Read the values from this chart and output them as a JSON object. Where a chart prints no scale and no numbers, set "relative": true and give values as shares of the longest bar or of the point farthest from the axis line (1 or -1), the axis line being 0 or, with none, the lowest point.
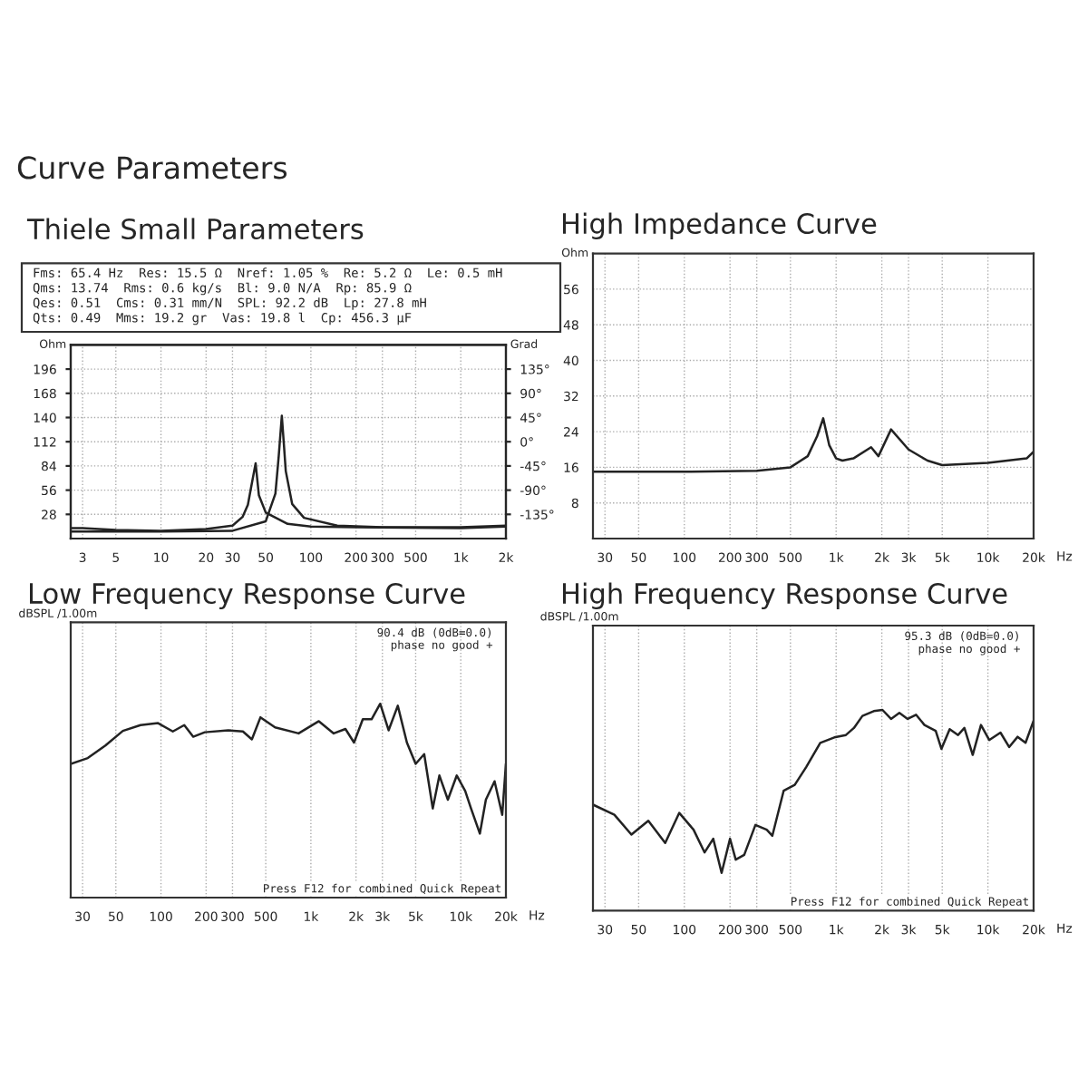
{
  "chart_data": [
    {
      "type": "line",
      "title": "Thiele Small Parameters",
      "annotations": [
        "Curve Parameters",
        "Fms: 65.4 Hz  Res: 15.5 Ω  Nref: 1.05 %  Re: 5.2 Ω  Le: 0.5 mH",
        "Qms: 13.74  Rms: 0.6 kg/s  Bl: 9.0 N/A  Rp: 85.9 Ω",
        "Qes: 0.51  Cms: 0.31 mm/N  SPL: 92.2 dB  Lp: 27.8 mH",
        "Qts: 0.49  Mms: 19.2 gr  Vas: 19.8 l  Cp: 456.3 µF"
      ],
      "ylabel": "Ohm",
      "y2label": "Grad",
      "log": "x",
      "grid": true,
      "legend": false,
      "xlim": [
        2.5,
        2000
      ],
      "xticks": [
        3,
        5,
        10,
        20,
        30,
        50,
        100,
        200,
        300,
        500,
        {
          "value": 1000,
          "label": "1k"
        },
        {
          "value": 2000,
          "label": "2k"
        }
      ],
      "ylim": [
        0,
        224
      ],
      "yticks": [
        28,
        56,
        84,
        112,
        140,
        168,
        196
      ],
      "y2lim": [
        -180,
        180
      ],
      "y2ticks": [
        {
          "value": -135,
          "label": "-135°"
        },
        {
          "value": -90,
          "label": "-90°"
        },
        {
          "value": -45,
          "label": "-45°"
        },
        {
          "value": 0,
          "label": "0°"
        },
        {
          "value": 45,
          "label": "45°"
        },
        {
          "value": 90,
          "label": "90°"
        },
        {
          "value": 135,
          "label": "135°"
        }
      ],
      "series": [
        {
          "color": "#222222",
          "x": [
            2.5,
            3,
            5,
            10,
            20,
            30,
            35,
            38,
            40,
            42.8,
            45,
            50,
            70,
            100,
            200,
            1000,
            2000
          ],
          "values": [
            12,
            12,
            10,
            9,
            11,
            15,
            25,
            39,
            60,
            87,
            50,
            30,
            17,
            14,
            13,
            12,
            14
          ]
        },
        {
          "color": "#222222",
          "x": [
            2.5,
            3,
            10,
            30,
            50,
            58,
            61,
            64,
            66,
            68,
            75,
            90,
            150,
            300,
            1000,
            2000
          ],
          "values": [
            8,
            8,
            8,
            9,
            20,
            52,
            95,
            142,
            110,
            78,
            40,
            24,
            15,
            13,
            13,
            15
          ]
        }
      ]
    },
    {
      "type": "line",
      "title": "High Impedance Curve",
      "ylabel": "Ohm",
      "xlabel": "Hz",
      "log": "x",
      "grid": true,
      "legend": false,
      "xlim": [
        25,
        20000
      ],
      "xticks": [
        30,
        50,
        100,
        200,
        300,
        500,
        {
          "value": 1000,
          "label": "1k"
        },
        {
          "value": 2000,
          "label": "2k"
        },
        {
          "value": 3000,
          "label": "3k"
        },
        {
          "value": 5000,
          "label": "5k"
        },
        {
          "value": 10000,
          "label": "10k"
        },
        {
          "value": 20000,
          "label": "20k"
        }
      ],
      "ylim": [
        0,
        64
      ],
      "yticks": [
        8,
        16,
        24,
        32,
        40,
        48,
        56
      ],
      "series": [
        {
          "color": "#222222",
          "x": [
            25,
            100,
            300,
            500,
            650,
            750,
            822,
            900,
            1000,
            1100,
            1300,
            1700,
            1900,
            2300,
            3000,
            4000,
            5000,
            10000,
            18000,
            20000
          ],
          "values": [
            15,
            15,
            15.2,
            16,
            18.5,
            23,
            27,
            21,
            18,
            17.5,
            18,
            20.5,
            18.5,
            24.5,
            20,
            17.5,
            16.5,
            17,
            18,
            19.5
          ]
        }
      ]
    },
    {
      "type": "line",
      "title": "Low Frequency Response Curve",
      "ylabel": "dBSPL /1.00m",
      "xlabel": "Hz",
      "relative": true,
      "log": "x",
      "grid": true,
      "legend": false,
      "annotations": [
        "90.4 dB (0dB=0.0)",
        "phase no good +",
        "Press F12 for combined Quick Repeat"
      ],
      "xlim": [
        25,
        20000
      ],
      "xticks": [
        30,
        50,
        100,
        200,
        300,
        500,
        {
          "value": 1000,
          "label": "1k"
        },
        {
          "value": 2000,
          "label": "2k"
        },
        {
          "value": 3000,
          "label": "3k"
        },
        {
          "value": 5000,
          "label": "5k"
        },
        {
          "value": 10000,
          "label": "10k"
        },
        {
          "value": 20000,
          "label": "20k"
        }
      ],
      "series": [
        {
          "color": "#222222",
          "x": [
            25,
            32.5,
            42.6,
            55.7,
            73,
            95.6,
            120,
            143,
            164,
            196,
            281,
            352,
            404,
            461,
            577,
            828,
            1130,
            1420,
            1700,
            1940,
            2220,
            2540,
            2900,
            3300,
            3800,
            4370,
            5000,
            5700,
            6500,
            7200,
            8200,
            9400,
            10700,
            11700,
            13400,
            14700,
            16800,
            18900,
            20000
          ],
          "values": [
            0.69,
            0.72,
            0.785,
            0.86,
            0.89,
            0.9,
            0.857,
            0.89,
            0.83,
            0.853,
            0.863,
            0.857,
            0.816,
            0.93,
            0.878,
            0.847,
            0.91,
            0.847,
            0.87,
            0.8,
            0.92,
            0.92,
            1.0,
            0.863,
            0.99,
            0.8,
            0.69,
            0.74,
            0.46,
            0.63,
            0.505,
            0.63,
            0.55,
            0.46,
            0.33,
            0.505,
            0.6,
            0.427,
            0.69
          ]
        }
      ]
    },
    {
      "type": "line",
      "title": "High Frequency Response Curve",
      "ylabel": "dBSPL /1.00m",
      "xlabel": "Hz",
      "relative": true,
      "log": "x",
      "grid": true,
      "legend": false,
      "annotations": [
        "95.3 dB (0dB=0.0)",
        "phase no good +",
        "Press F12 for combined Quick Repeat"
      ],
      "xlim": [
        25,
        20000
      ],
      "xticks": [
        30,
        50,
        100,
        200,
        300,
        500,
        {
          "value": 1000,
          "label": "1k"
        },
        {
          "value": 2000,
          "label": "2k"
        },
        {
          "value": 3000,
          "label": "3k"
        },
        {
          "value": 5000,
          "label": "5k"
        },
        {
          "value": 10000,
          "label": "10k"
        },
        {
          "value": 20000,
          "label": "20k"
        }
      ],
      "series": [
        {
          "color": "#222222",
          "x": [
            25,
            34.6,
            44.8,
            57.9,
            74.8,
            92.6,
            115,
            136,
            155,
            176,
            200,
            218,
            248,
            294,
            349,
            380,
            451,
            534,
            636,
            786,
            973,
            1160,
            1310,
            1490,
            1770,
            2020,
            2300,
            2610,
            2960,
            3360,
            3820,
            4530,
            4940,
            5600,
            6360,
            7000,
            7940,
            9000,
            10200,
            12100,
            13800,
            15700,
            17700,
            20000
          ],
          "values": [
            0.528,
            0.478,
            0.379,
            0.448,
            0.337,
            0.487,
            0.403,
            0.29,
            0.358,
            0.188,
            0.358,
            0.254,
            0.278,
            0.427,
            0.403,
            0.373,
            0.597,
            0.627,
            0.716,
            0.836,
            0.863,
            0.875,
            0.91,
            0.97,
            0.994,
            1.0,
            0.955,
            0.985,
            0.955,
            0.976,
            0.925,
            0.896,
            0.806,
            0.904,
            0.875,
            0.91,
            0.776,
            0.925,
            0.85,
            0.887,
            0.815,
            0.866,
            0.836,
            0.946
          ]
        }
      ]
    }
  ]
}
